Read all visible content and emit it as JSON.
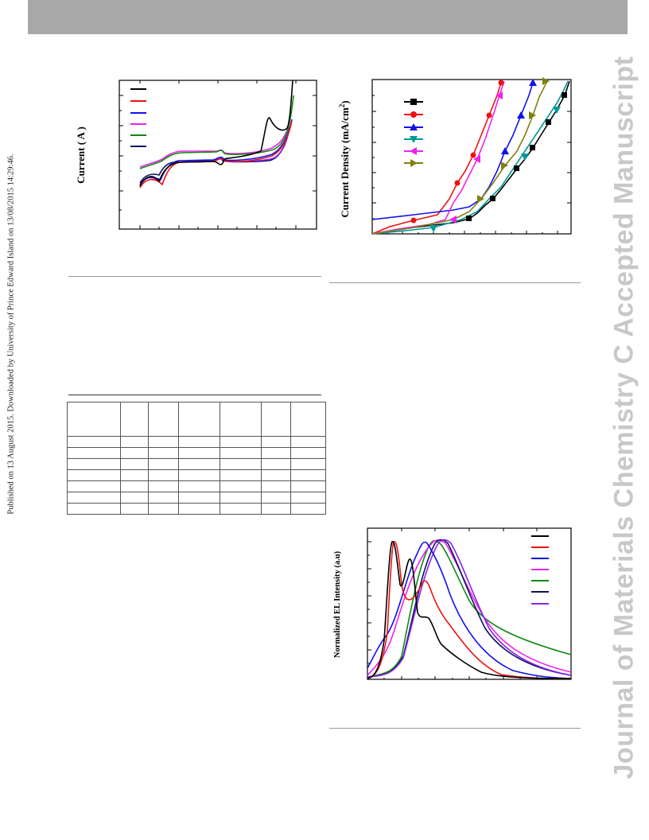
{
  "sidebar": {
    "published_text": "Published on 13 August 2015. Downloaded by University of Prince Edward Island on 13/08/2015 14:29:46."
  },
  "watermark": {
    "text": "Journal of Materials Chemistry C Accepted Manuscript"
  },
  "colors": {
    "black": "#000000",
    "red": "#ee1111",
    "blue": "#1111ee",
    "magenta": "#ee22ee",
    "green": "#118811",
    "navy": "#101060",
    "purple": "#8822ee",
    "teal": "#009999",
    "olive": "#808010",
    "topbar": "#a8a8a8",
    "watermark": "#c8c8c8"
  },
  "chart_data": [
    {
      "type": "line",
      "ylabel": "Current ( A )",
      "legend": {
        "placement": "top-left",
        "series_colors": [
          "#000000",
          "#ee1111",
          "#1111ee",
          "#ee22ee",
          "#118811",
          "#101060"
        ]
      }
    },
    {
      "type": "line",
      "ylabel": "Current Density (mA/cm²)",
      "legend": {
        "placement": "top-left",
        "markers": [
          "square",
          "circle",
          "triangle-up",
          "triangle-down",
          "triangle-left",
          "triangle-right"
        ],
        "series_colors": [
          "#000000",
          "#ee1111",
          "#1111ee",
          "#009999",
          "#ee22ee",
          "#808010"
        ]
      }
    },
    {
      "type": "line",
      "ylabel": "Normalized EL Intensity (a.u)",
      "legend": {
        "placement": "top-right",
        "series_colors": [
          "#000000",
          "#ee1111",
          "#1111ee",
          "#ee22ee",
          "#118811",
          "#101060",
          "#8822ee"
        ]
      }
    }
  ],
  "table": {
    "rows": 8,
    "columns": 7
  }
}
